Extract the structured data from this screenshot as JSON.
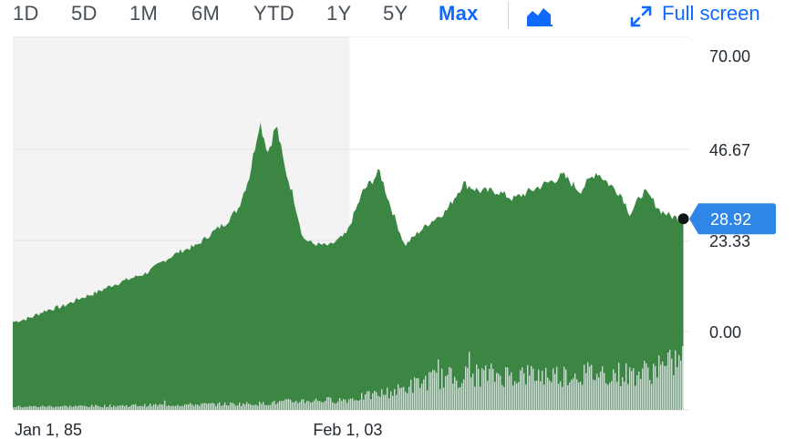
{
  "toolbar": {
    "ranges": [
      "1D",
      "5D",
      "1M",
      "6M",
      "YTD",
      "1Y",
      "5Y",
      "Max"
    ],
    "active_range": "Max",
    "chart_type_icon": "area-chart-icon",
    "fullscreen_icon": "expand-arrows-icon",
    "fullscreen_label": "Full screen"
  },
  "colors": {
    "area": "#3b8643",
    "volume": "#c4e0cc",
    "accent": "#0f69ff",
    "shade": "#f3f3f3",
    "price_tag": "#2f86e6"
  },
  "chart_data": {
    "type": "area",
    "title": "",
    "xlabel": "",
    "ylabel": "",
    "x_tick_labels": [
      "Jan 1, 85",
      "Feb 1, 03"
    ],
    "y_tick_labels": [
      "70.00",
      "46.67",
      "23.33",
      "0.00"
    ],
    "y_ticks": [
      70,
      46.67,
      23.33,
      0
    ],
    "ylim": [
      -20,
      70
    ],
    "xlim": [
      1985.0,
      2025.5
    ],
    "current_price": 28.92,
    "current_price_label": "28.92",
    "grid": true,
    "series": [
      {
        "x": [
          1985.0,
          1986.0,
          1987.0,
          1988.0,
          1989.0,
          1990.0,
          1991.0,
          1992.0,
          1993.0,
          1994.0,
          1995.0,
          1996.0,
          1997.0,
          1997.8,
          1998.5,
          1999.2,
          1999.8,
          2000.3,
          2000.8,
          2001.3,
          2001.8,
          2002.4,
          2003.0,
          2004.0,
          2005.0,
          2006.0,
          2007.0,
          2007.5,
          2008.5,
          2009.2,
          2010.0,
          2011.0,
          2012.0,
          2013.0,
          2014.0,
          2015.0,
          2016.0,
          2017.0,
          2018.0,
          2019.0,
          2020.0,
          2020.7,
          2021.5,
          2022.0,
          2022.8,
          2023.3,
          2023.8,
          2024.5,
          2025.2
        ],
        "y": [
          2.5,
          3.5,
          5.5,
          6.5,
          8.5,
          10.0,
          12.0,
          13.5,
          15.0,
          18.0,
          20.5,
          22.0,
          25.5,
          28.0,
          31.5,
          40.0,
          54.0,
          46.0,
          53.0,
          42.0,
          35.0,
          24.0,
          22.5,
          22.0,
          25.0,
          36.0,
          41.0,
          34.0,
          22.0,
          25.0,
          28.0,
          31.0,
          38.0,
          36.0,
          36.0,
          34.0,
          36.0,
          38.0,
          40.0,
          36.0,
          41.0,
          38.0,
          35.0,
          30.0,
          36.0,
          34.0,
          31.0,
          29.5,
          28.92
        ]
      }
    ],
    "volume": {
      "x": [
        1985.0,
        1990.0,
        1995.0,
        2000.0,
        2002.0,
        2005.0,
        2008.0,
        2010.0,
        2013.0,
        2015.0,
        2018.0,
        2020.0,
        2022.0,
        2024.0,
        2025.2
      ],
      "share": [
        0.05,
        0.06,
        0.08,
        0.1,
        0.14,
        0.16,
        0.3,
        0.48,
        0.55,
        0.55,
        0.55,
        0.58,
        0.56,
        0.65,
        0.85
      ]
    },
    "shaded_region": [
      1985.0,
      2005.2
    ]
  }
}
